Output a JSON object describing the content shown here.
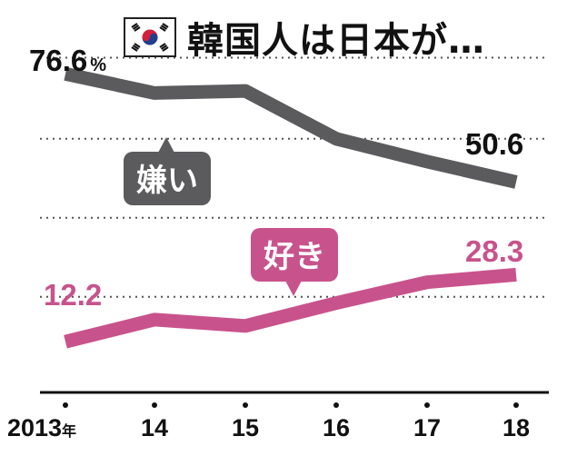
{
  "title": "韓国人は日本が…",
  "flag_icon": "south-korea-flag-icon",
  "colors": {
    "dislike": "#5b5b5e",
    "like": "#c8538c",
    "grid": "#555555",
    "axis": "#111111"
  },
  "callouts": {
    "dislike": "嫌い",
    "like": "好き"
  },
  "chart_data": {
    "type": "line",
    "categories": [
      "2013年",
      "14",
      "15",
      "16",
      "17",
      "18"
    ],
    "x_unit": "年",
    "ylim": [
      0,
      90
    ],
    "grid": true,
    "series": [
      {
        "name": "嫌い",
        "values": [
          76.6,
          72,
          72.5,
          61,
          55.5,
          50.6
        ]
      },
      {
        "name": "好き",
        "values": [
          12.2,
          17.5,
          16,
          21.5,
          26.5,
          28.3
        ]
      }
    ],
    "data_labels": {
      "dislike_first": "76.6",
      "dislike_first_unit": "%",
      "dislike_last": "50.6",
      "like_first": "12.2",
      "like_last": "28.3"
    }
  }
}
